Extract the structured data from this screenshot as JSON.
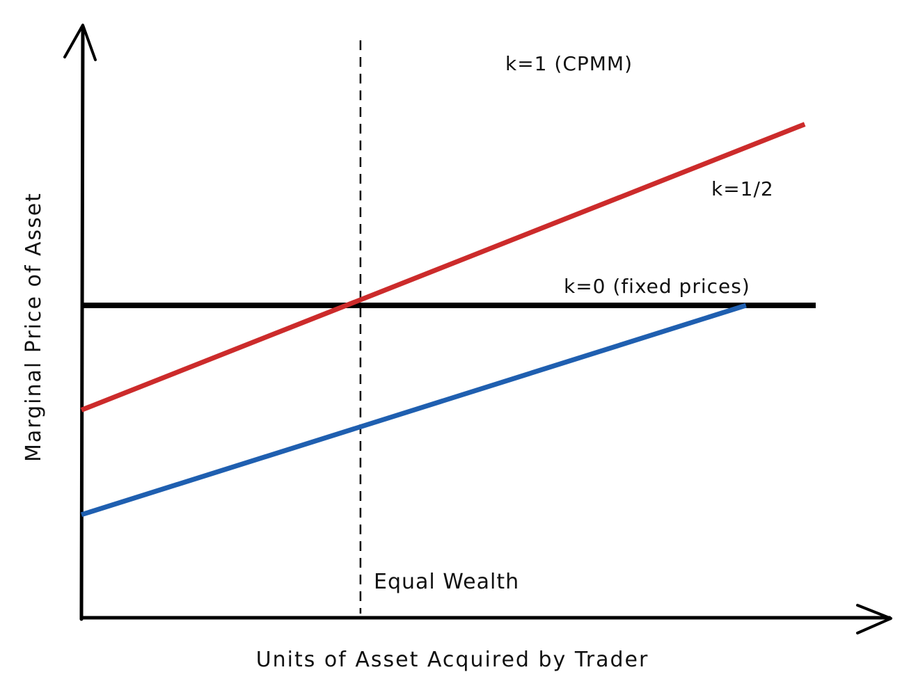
{
  "chart_data": {
    "type": "line",
    "title": "",
    "xlabel": "Units of Asset Acquired by Trader",
    "ylabel": "Marginal Price of Asset",
    "xlim": [
      0,
      1
    ],
    "ylim": [
      0,
      1
    ],
    "grid": false,
    "ticks": false,
    "series": [
      {
        "name": "k=1 (CPMM)",
        "color": "#1f5fb0",
        "points": [
          [
            0.0,
            0.33
          ],
          [
            0.905,
            1.0
          ]
        ]
      },
      {
        "name": "k=1/2",
        "color": "#cc2b2b",
        "points": [
          [
            0.0,
            0.665
          ],
          [
            0.985,
            1.58
          ]
        ]
      },
      {
        "name": "k=0 (fixed prices)",
        "color": "#000000",
        "points": [
          [
            0.0,
            1.0
          ],
          [
            1.0,
            1.0
          ]
        ]
      }
    ],
    "annotations": [
      {
        "label": "Equal Wealth",
        "x": 0.38,
        "style": "dashed-vertical"
      }
    ]
  }
}
